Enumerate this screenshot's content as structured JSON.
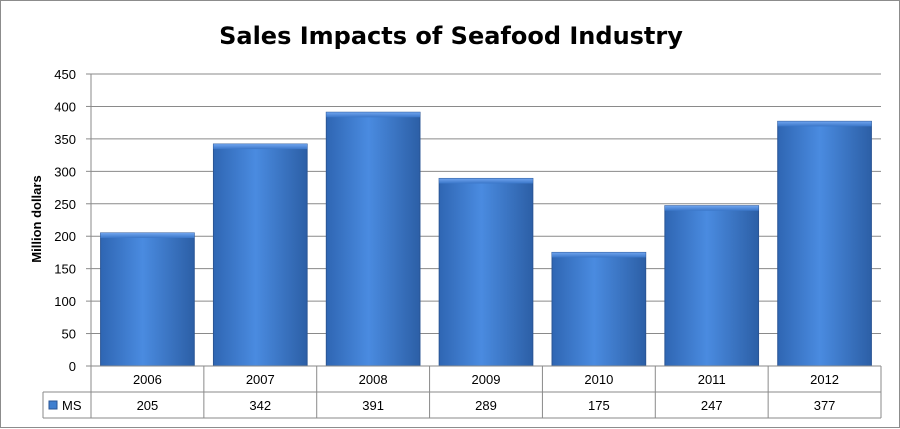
{
  "chart_data": {
    "type": "bar",
    "title": "Sales Impacts of Seafood Industry",
    "ylabel": "Million dollars",
    "xlabel": "",
    "categories": [
      "2006",
      "2007",
      "2008",
      "2009",
      "2010",
      "2011",
      "2012"
    ],
    "series": [
      {
        "name": "MS",
        "values": [
          205,
          342,
          391,
          289,
          175,
          247,
          377
        ],
        "color": "#3f7fcf"
      }
    ],
    "ylim": [
      0,
      450
    ],
    "yticks": [
      "0",
      "50",
      "100",
      "150",
      "200",
      "250",
      "300",
      "350",
      "400",
      "450"
    ],
    "grid": true,
    "legend": "data-table",
    "data_table": true
  }
}
